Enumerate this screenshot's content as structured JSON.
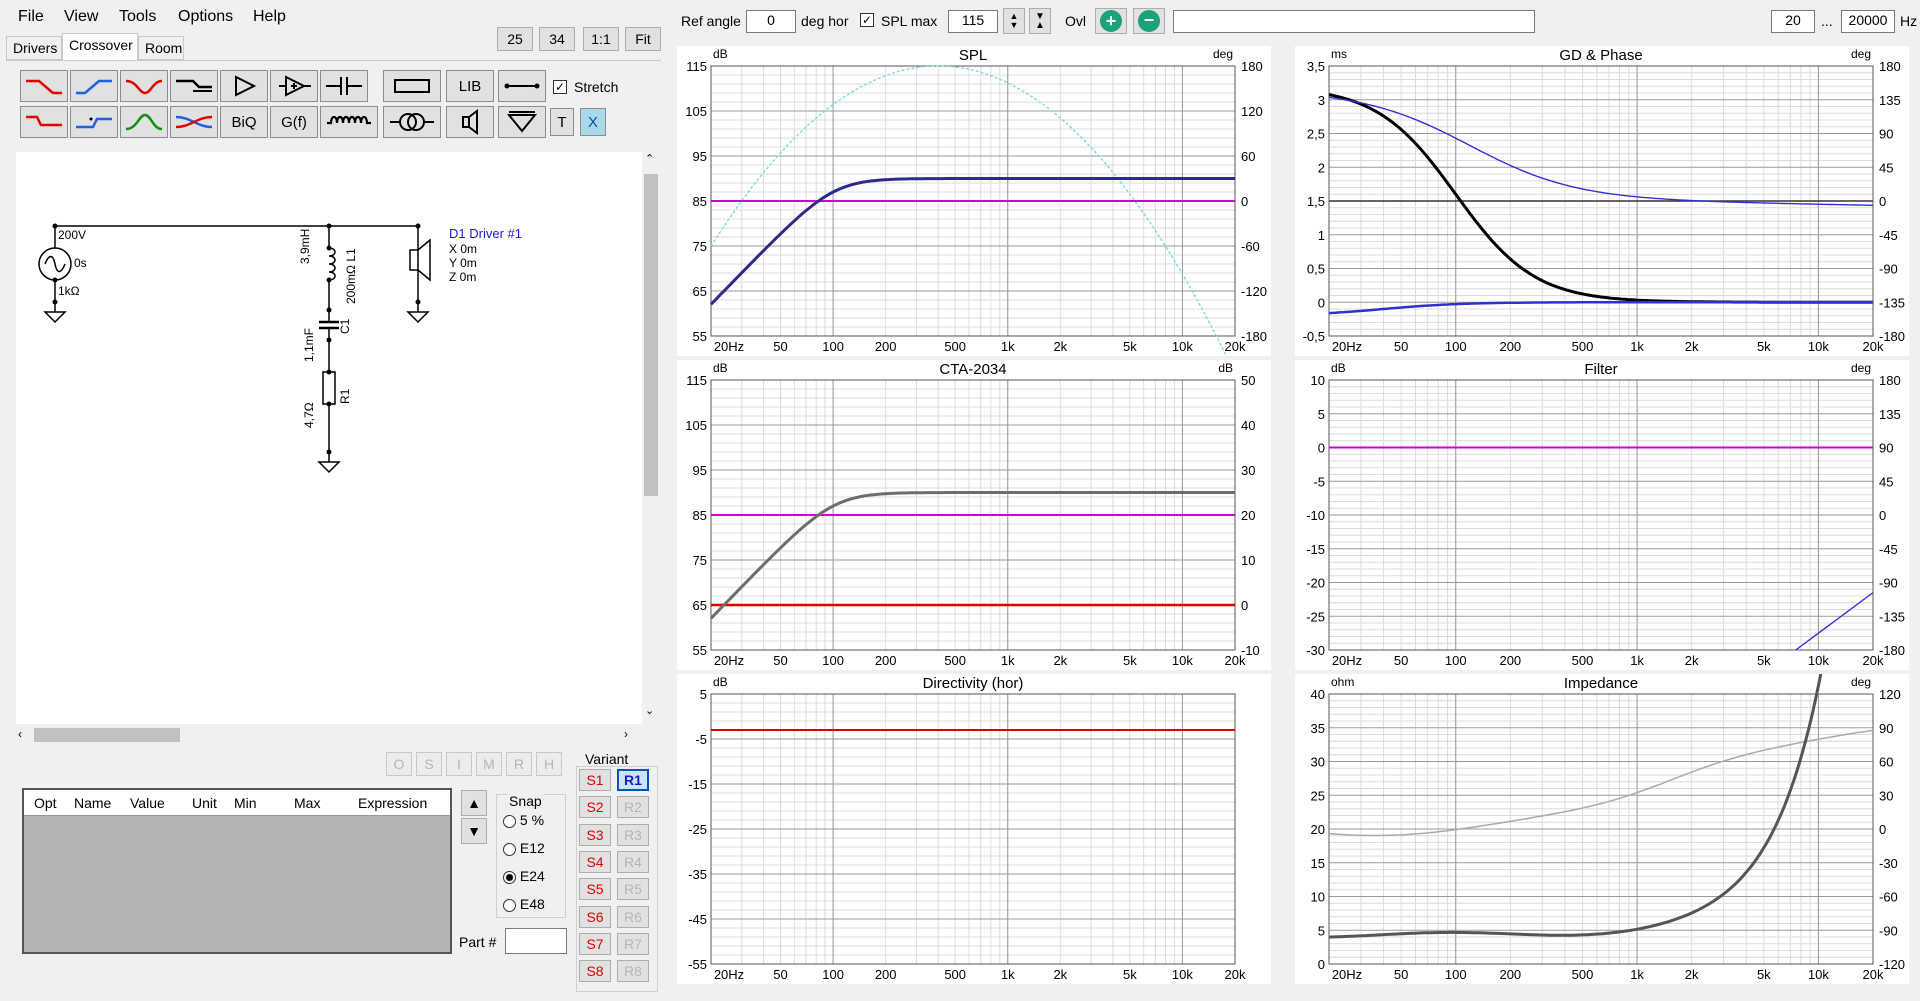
{
  "menu": [
    "File",
    "View",
    "Tools",
    "Options",
    "Help"
  ],
  "zoom_buttons": [
    "25",
    "34",
    "1:1",
    "Fit"
  ],
  "tabs": [
    "Drivers",
    "Crossover",
    "Room"
  ],
  "toolbar": {
    "lib_label": "LIB",
    "stretch_label": "Stretch",
    "biq_label": "BiQ",
    "gf_label": "G(f)",
    "t_label": "T",
    "x_label": "X"
  },
  "schematic": {
    "source_voltage": "200V",
    "source_delay": "0s",
    "source_impedance": "1kΩ",
    "inductor_value": "3,9mH",
    "inductor_label": "200mΩ L1",
    "capacitor_value": "1,1mF",
    "capacitor_label": "C1",
    "resistor_value": "4,7Ω",
    "resistor_label": "R1",
    "driver_name": "D1 Driver #1",
    "driver_x": "X 0m",
    "driver_y": "Y 0m",
    "driver_z": "Z 0m"
  },
  "mode_buttons": [
    "O",
    "S",
    "I",
    "M",
    "R",
    "H"
  ],
  "opt_table": {
    "headers": [
      "Opt",
      "Name",
      "Value",
      "Unit",
      "Min",
      "Max",
      "Expression"
    ]
  },
  "snap": {
    "title": "Snap",
    "options": [
      "5 %",
      "E12",
      "E24",
      "E48"
    ],
    "selected": "E24"
  },
  "part_label": "Part #",
  "variant": {
    "title": "Variant",
    "s": [
      "S1",
      "S2",
      "S3",
      "S4",
      "S5",
      "S6",
      "S7",
      "S8"
    ],
    "r": [
      "R1",
      "R2",
      "R3",
      "R4",
      "R5",
      "R6",
      "R7",
      "R8"
    ],
    "active": "R1"
  },
  "topbar": {
    "ref_angle_label": "Ref angle",
    "ref_angle_value": "0",
    "deg_hor_label": "deg hor",
    "spl_max_label": "SPL max",
    "spl_max_value": "115",
    "spl_max_checked": true,
    "ovl_label": "Ovl",
    "freq_min": "20",
    "freq_sep": "...",
    "freq_max": "20000",
    "hz_label": "Hz"
  },
  "x_ticks": [
    "20Hz",
    "50",
    "100",
    "200",
    "500",
    "1k",
    "2k",
    "5k",
    "10k",
    "20k"
  ],
  "charts": {
    "spl": {
      "title": "SPL",
      "left_unit": "dB",
      "right_unit": "deg",
      "left": [
        "115",
        "105",
        "95",
        "85",
        "75",
        "65",
        "55"
      ],
      "right": [
        "180",
        "120",
        "60",
        "0",
        "-60",
        "-120",
        "-180"
      ]
    },
    "gd": {
      "title": "GD & Phase",
      "left_unit": "ms",
      "right_unit": "deg",
      "left": [
        "3,5",
        "3",
        "2,5",
        "2",
        "1,5",
        "1",
        "0,5",
        "0",
        "-0,5"
      ],
      "right": [
        "180",
        "135",
        "90",
        "45",
        "0",
        "-45",
        "-90",
        "-135",
        "-180"
      ]
    },
    "cta": {
      "title": "CTA-2034",
      "left_unit": "dB",
      "right_unit": "dB",
      "left": [
        "115",
        "105",
        "95",
        "85",
        "75",
        "65",
        "55"
      ],
      "right": [
        "50",
        "40",
        "30",
        "20",
        "10",
        "0",
        "-10"
      ]
    },
    "filter": {
      "title": "Filter",
      "left_unit": "dB",
      "right_unit": "deg",
      "left": [
        "10",
        "5",
        "0",
        "-5",
        "-10",
        "-15",
        "-20",
        "-25",
        "-30"
      ],
      "right": [
        "180",
        "135",
        "90",
        "45",
        "0",
        "-45",
        "-90",
        "-135",
        "-180"
      ]
    },
    "dir": {
      "title": "Directivity (hor)",
      "left_unit": "dB",
      "right_unit": "",
      "left": [
        "5",
        "-5",
        "-15",
        "-25",
        "-35",
        "-45",
        "-55"
      ],
      "right": []
    },
    "imp": {
      "title": "Impedance",
      "left_unit": "ohm",
      "right_unit": "deg",
      "left": [
        "40",
        "35",
        "30",
        "25",
        "20",
        "15",
        "10",
        "5",
        "0"
      ],
      "right": [
        "120",
        "90",
        "60",
        "30",
        "0",
        "-30",
        "-60",
        "-90",
        "-120"
      ]
    }
  },
  "colors": {
    "spl_main": "#2b2b8c",
    "spl_phase": "#7fd8de",
    "ref_line": "#d000d0",
    "gd_black": "#000000",
    "gd_blue": "#3030d0",
    "cta_grey": "#6e6e68",
    "red": "#e00000",
    "imp_dark": "#555555",
    "imp_light": "#aaaaaa"
  }
}
